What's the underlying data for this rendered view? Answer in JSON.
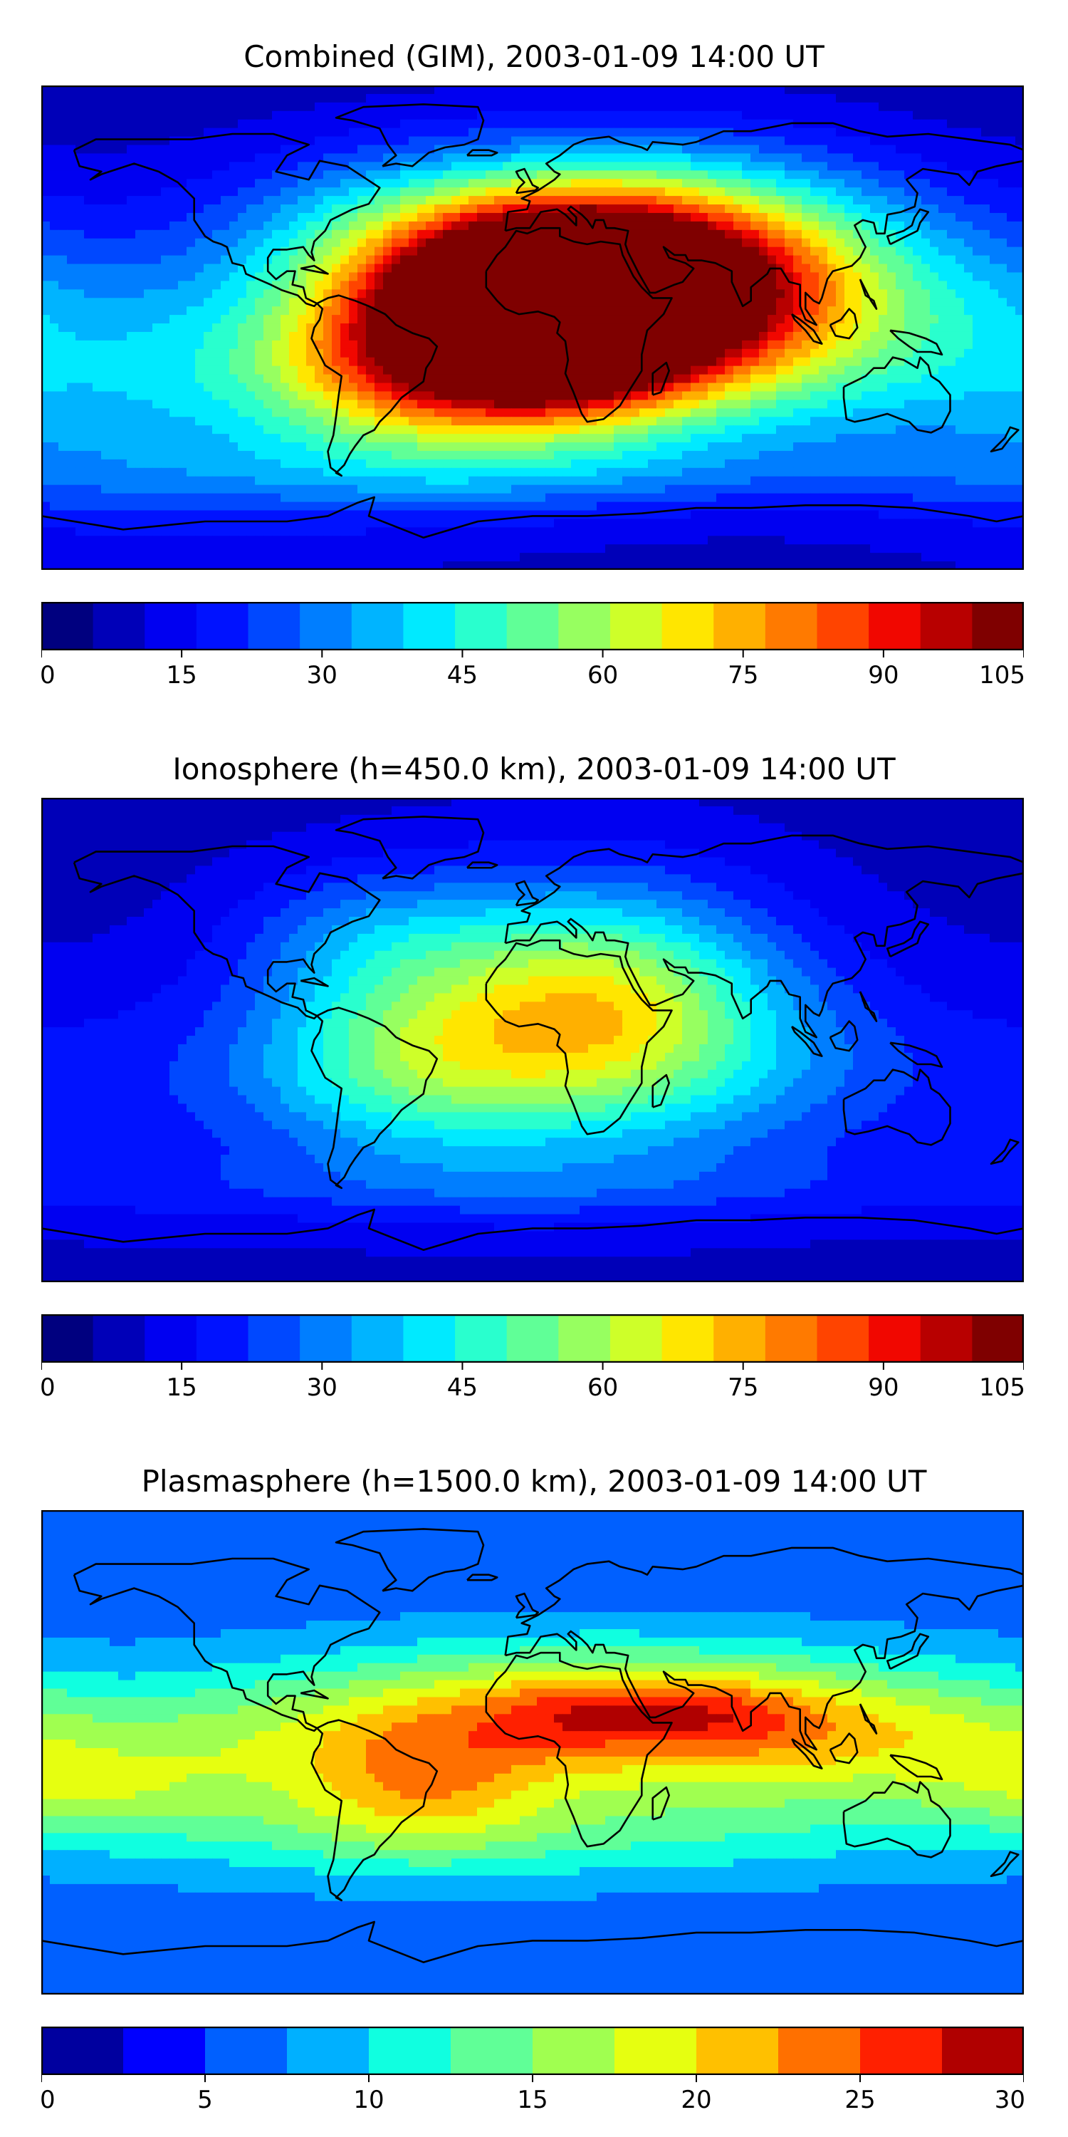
{
  "maps": [
    {
      "title": "Combined (GIM), 2003-01-09 14:00 UT",
      "field": "combined",
      "colorbar": {
        "min": 0,
        "max": 105,
        "step": 5,
        "ticks": [
          "0",
          "15",
          "30",
          "45",
          "60",
          "75",
          "90",
          "105"
        ],
        "colors": [
          "#00007f",
          "#0000b8",
          "#0000f1",
          "#0012ff",
          "#0048ff",
          "#007eff",
          "#00b4ff",
          "#00eaff",
          "#29ffce",
          "#60ff97",
          "#97ff60",
          "#ceff29",
          "#ffe600",
          "#ffb000",
          "#ff7a00",
          "#ff4400",
          "#f10700",
          "#b80000",
          "#7f0000"
        ]
      }
    },
    {
      "title": "Ionosphere  (h=450.0 km), 2003-01-09 14:00 UT",
      "field": "ionosphere",
      "colorbar": {
        "min": 0,
        "max": 105,
        "step": 5,
        "ticks": [
          "0",
          "15",
          "30",
          "45",
          "60",
          "75",
          "90",
          "105"
        ],
        "colors": [
          "#00007f",
          "#0000b8",
          "#0000f1",
          "#0012ff",
          "#0048ff",
          "#007eff",
          "#00b4ff",
          "#00eaff",
          "#29ffce",
          "#60ff97",
          "#97ff60",
          "#ceff29",
          "#ffe600",
          "#ffb000",
          "#ff7a00",
          "#ff4400",
          "#f10700",
          "#b80000",
          "#7f0000"
        ]
      }
    },
    {
      "title": "Plasmasphere (h=1500.0 km), 2003-01-09 14:00 UT",
      "field": "plasmasphere",
      "colorbar": {
        "min": 0,
        "max": 30,
        "step": 2.5,
        "ticks": [
          "0",
          "5",
          "10",
          "15",
          "20",
          "25",
          "30"
        ],
        "colors": [
          "#00009f",
          "#0000ff",
          "#0060ff",
          "#00b0ff",
          "#10ffe0",
          "#60ff97",
          "#a0ff50",
          "#e6ff10",
          "#ffc000",
          "#ff7000",
          "#ff2000",
          "#b00000"
        ]
      }
    }
  ]
}
